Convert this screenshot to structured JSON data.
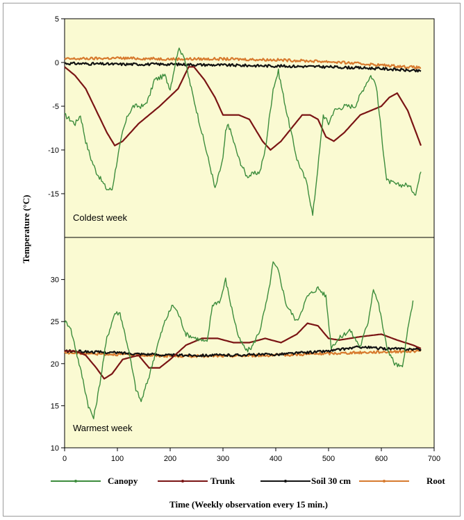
{
  "chart_data": {
    "type": "line",
    "xlabel": "Time (Weekly observation every 15 min.)",
    "ylabel": "Temperature (°C)",
    "xlim": [
      0,
      700
    ],
    "xticks": [
      0,
      100,
      200,
      300,
      400,
      500,
      600,
      700
    ],
    "legend_position": "bottom",
    "colors": {
      "panel_bg": "#fafad2",
      "Canopy": "#3c8c3c",
      "Trunk": "#7a1414",
      "Soil 30 cm": "#111111",
      "Root": "#d77a2e"
    },
    "panels": [
      {
        "label": "Coldest week",
        "ylim": [
          -20,
          5
        ],
        "yticks": [
          -15,
          -10,
          -5,
          0,
          5
        ],
        "series": [
          {
            "name": "Canopy",
            "x": [
              0,
              10,
              20,
              30,
              40,
              50,
              60,
              70,
              80,
              90,
              100,
              110,
              120,
              130,
              150,
              160,
              170,
              190,
              200,
              215,
              225,
              240,
              260,
              280,
              285,
              300,
              305,
              310,
              330,
              345,
              370,
              380,
              395,
              405,
              420,
              440,
              460,
              470,
              485,
              490,
              500,
              510,
              530,
              550,
              570,
              580,
              590,
              600,
              610,
              630,
              650,
              665,
              675
            ],
            "y": [
              -6,
              -6.5,
              -7,
              -6,
              -9,
              -11,
              -12.5,
              -13.5,
              -14.5,
              -14.5,
              -11,
              -8,
              -6,
              -5,
              -5,
              -4,
              -2,
              -1.5,
              -3,
              1.5,
              1,
              -3,
              -8,
              -13,
              -14.5,
              -11,
              -8,
              -7,
              -11,
              -13,
              -12.5,
              -10,
              -3,
              -1,
              -5.5,
              -11,
              -14,
              -17.5,
              -9,
              -6,
              -7,
              -5.5,
              -5,
              -5,
              -2.5,
              -1.5,
              -2.5,
              -8,
              -13.5,
              -14,
              -14,
              -15,
              -12.5
            ]
          },
          {
            "name": "Trunk",
            "x": [
              0,
              20,
              40,
              60,
              80,
              95,
              110,
              140,
              180,
              215,
              235,
              245,
              265,
              285,
              300,
              315,
              330,
              350,
              375,
              390,
              410,
              430,
              450,
              465,
              480,
              495,
              510,
              530,
              560,
              580,
              600,
              615,
              630,
              650,
              675
            ],
            "y": [
              -0.5,
              -1.5,
              -3,
              -5.5,
              -8,
              -9.5,
              -9,
              -7,
              -5,
              -3,
              -0.5,
              -0.5,
              -2,
              -4,
              -6,
              -6,
              -6,
              -6.5,
              -9,
              -10,
              -9,
              -7.5,
              -6,
              -6,
              -6.5,
              -8.5,
              -9,
              -8,
              -6,
              -5.5,
              -5,
              -4,
              -3.5,
              -5.5,
              -9.5
            ]
          },
          {
            "name": "Soil 30 cm",
            "x": [
              0,
              100,
              200,
              300,
              400,
              500,
              600,
              675
            ],
            "y": [
              -0.1,
              -0.2,
              -0.2,
              -0.3,
              -0.4,
              -0.5,
              -0.7,
              -1
            ]
          },
          {
            "name": "Root",
            "x": [
              0,
              100,
              200,
              300,
              400,
              500,
              600,
              675
            ],
            "y": [
              0.4,
              0.5,
              0.4,
              0.4,
              0.3,
              0.1,
              -0.3,
              -0.6
            ]
          }
        ]
      },
      {
        "label": "Warmest week",
        "ylim": [
          10,
          35
        ],
        "yticks": [
          10,
          15,
          20,
          25,
          30
        ],
        "series": [
          {
            "name": "Canopy",
            "x": [
              0,
              10,
              20,
              35,
              45,
              55,
              65,
              80,
              95,
              105,
              120,
              135,
              145,
              160,
              175,
              190,
              205,
              215,
              230,
              250,
              270,
              280,
              295,
              305,
              315,
              330,
              345,
              355,
              370,
              385,
              395,
              405,
              420,
              440,
              460,
              480,
              495,
              505,
              520,
              540,
              560,
              575,
              585,
              595,
              610,
              625,
              640,
              650,
              660
            ],
            "y": [
              25,
              24.5,
              22,
              18,
              15,
              13.5,
              17,
              23,
              26,
              26,
              22,
              17,
              15.5,
              18.5,
              22,
              25,
              27,
              26,
              23.5,
              23,
              22.5,
              27,
              27.5,
              30,
              27,
              23,
              21.5,
              22,
              24,
              28,
              32,
              31,
              27,
              25,
              28,
              29,
              28,
              22,
              23,
              24,
              22,
              25,
              29,
              27,
              22,
              20,
              19.5,
              24,
              27.5
            ]
          },
          {
            "name": "Trunk",
            "x": [
              0,
              20,
              40,
              60,
              75,
              90,
              110,
              140,
              160,
              180,
              200,
              230,
              260,
              290,
              320,
              350,
              380,
              410,
              440,
              460,
              480,
              500,
              520,
              560,
              600,
              630,
              660,
              675
            ],
            "y": [
              21.5,
              21.5,
              21,
              19.5,
              18.2,
              18.8,
              20.5,
              21,
              19.5,
              19.5,
              20.5,
              22.2,
              23,
              23,
              22.5,
              22.5,
              23,
              22.5,
              23.5,
              24.8,
              24.5,
              23,
              22.8,
              23.2,
              23.5,
              22.8,
              22.2,
              21.8
            ]
          },
          {
            "name": "Soil 30 cm",
            "x": [
              0,
              100,
              200,
              300,
              400,
              500,
              560,
              600,
              675
            ],
            "y": [
              21.5,
              21.3,
              21,
              21,
              21.1,
              21.5,
              22,
              21.8,
              21.7
            ]
          },
          {
            "name": "Root",
            "x": [
              0,
              100,
              200,
              300,
              400,
              500,
              600,
              675
            ],
            "y": [
              21.3,
              21.1,
              20.9,
              20.9,
              21,
              21.2,
              21.4,
              21.5
            ]
          }
        ]
      }
    ]
  }
}
